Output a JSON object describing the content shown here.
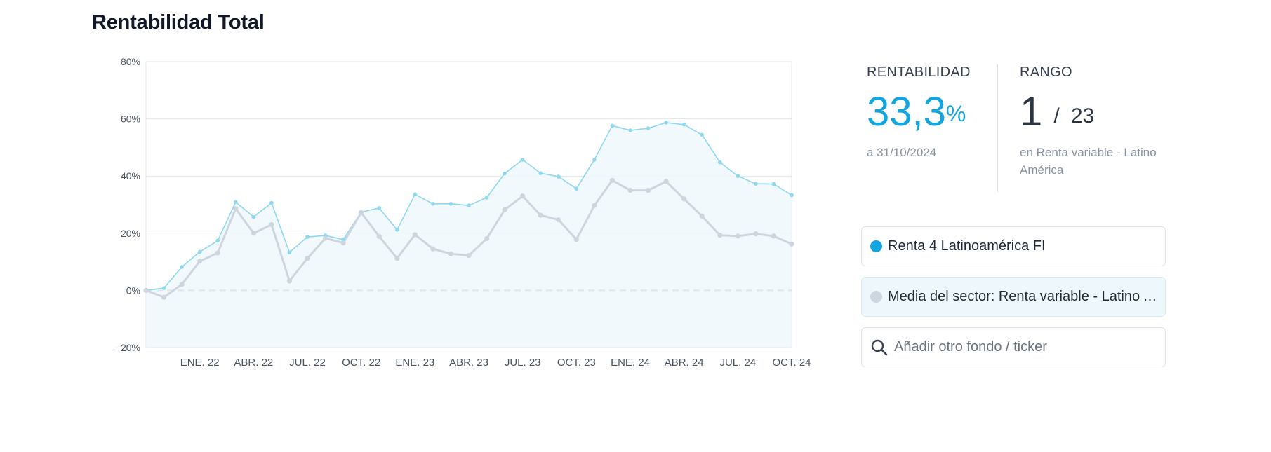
{
  "page": {
    "title": "Rentabilidad Total"
  },
  "metrics": {
    "return": {
      "label": "RENTABILIDAD",
      "value": "33,3",
      "unit": "%",
      "date": "a 31/10/2024"
    },
    "rank": {
      "label": "RANGO",
      "position": "1",
      "separator": "/",
      "total": "23",
      "category": "en Renta variable - Latino América"
    }
  },
  "legend": {
    "fund": {
      "label": "Renta 4 Latinoamérica FI",
      "color": "#13a5e0"
    },
    "sector": {
      "label": "Media del sector: Renta variable - Latino América",
      "color": "#cdd5df"
    }
  },
  "search": {
    "placeholder": "Añadir otro fondo / ticker",
    "value": ""
  },
  "chart_data": {
    "type": "line",
    "ylim": [
      -20,
      80
    ],
    "yticks": [
      -20,
      0,
      20,
      40,
      60,
      80
    ],
    "ytick_labels": [
      "−20%",
      "0%",
      "20%",
      "40%",
      "60%",
      "80%"
    ],
    "xlim": [
      0,
      36
    ],
    "xticks": [
      {
        "label": "ENE. 22",
        "x": 3
      },
      {
        "label": "ABR. 22",
        "x": 6
      },
      {
        "label": "JUL. 22",
        "x": 9
      },
      {
        "label": "OCT. 22",
        "x": 12
      },
      {
        "label": "ENE. 23",
        "x": 15
      },
      {
        "label": "ABR. 23",
        "x": 18
      },
      {
        "label": "JUL. 23",
        "x": 21
      },
      {
        "label": "OCT. 23",
        "x": 24
      },
      {
        "label": "ENE. 24",
        "x": 27
      },
      {
        "label": "ABR. 24",
        "x": 30
      },
      {
        "label": "JUL. 24",
        "x": 33
      },
      {
        "label": "OCT. 24",
        "x": 36
      }
    ],
    "baseline": 0,
    "series": [
      {
        "name": "Renta 4 Latinoamérica FI",
        "color": "#8fd8ef",
        "values": [
          0,
          0.8,
          8.2,
          13.5,
          17.4,
          30.9,
          25.7,
          30.6,
          13.3,
          18.7,
          19.2,
          17.8,
          27.4,
          28.8,
          21.2,
          33.6,
          30.3,
          30.3,
          29.7,
          32.5,
          40.9,
          45.7,
          41.0,
          39.8,
          35.6,
          45.7,
          57.6,
          56.0,
          56.7,
          58.7,
          58.0,
          54.4,
          44.8,
          40.0,
          37.3,
          37.2,
          33.3
        ]
      },
      {
        "name": "Media del sector: Renta variable - Latino América",
        "color": "#cdd5df",
        "values": [
          0,
          -2.4,
          2.1,
          10.2,
          13.1,
          28.6,
          20.0,
          23.0,
          3.3,
          11.2,
          18.2,
          16.6,
          27.2,
          18.9,
          11.2,
          19.5,
          14.5,
          12.8,
          12.2,
          18.1,
          28.2,
          33.0,
          26.3,
          24.7,
          17.8,
          29.7,
          38.5,
          35.0,
          35.0,
          38.1,
          32.0,
          26.0,
          19.3,
          19.0,
          19.8,
          19.0,
          16.2
        ]
      }
    ]
  }
}
